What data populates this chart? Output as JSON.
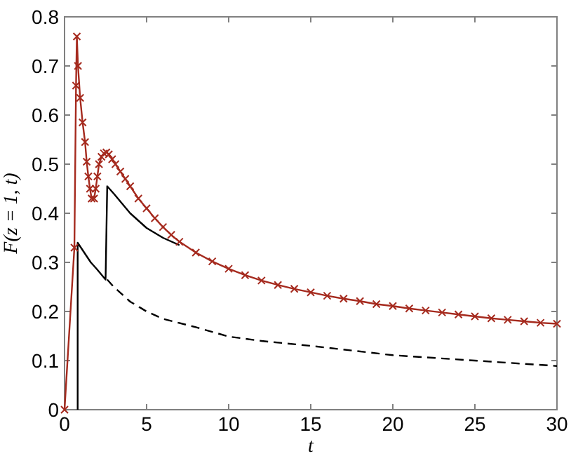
{
  "chart_data": {
    "type": "line",
    "xlabel": "t",
    "ylabel": "F(z = 1, t)",
    "xlim": [
      0,
      30
    ],
    "ylim": [
      0,
      0.8
    ],
    "xticks": [
      0,
      5,
      10,
      15,
      20,
      25,
      30
    ],
    "yticks": [
      0,
      0.1,
      0.2,
      0.3,
      0.4,
      0.5,
      0.6,
      0.7,
      0.8
    ],
    "grid": false,
    "series": [
      {
        "color": "#000000",
        "line_style": "solid",
        "marker": "none",
        "x": [
          0.8,
          0.8,
          1.2,
          1.6,
          2,
          2.5,
          2.6,
          3,
          3.5,
          4,
          4.5,
          5,
          6,
          7
        ],
        "values": [
          0,
          0.34,
          0.32,
          0.3,
          0.285,
          0.265,
          0.455,
          0.44,
          0.42,
          0.4,
          0.385,
          0.37,
          0.35,
          0.335
        ]
      },
      {
        "color": "#000000",
        "line_style": "dashed",
        "marker": "none",
        "x": [
          2.6,
          3,
          4,
          4.6,
          5,
          6,
          8,
          10,
          12,
          15,
          20,
          25,
          30
        ],
        "values": [
          0.265,
          0.25,
          0.22,
          0.208,
          0.2,
          0.185,
          0.168,
          0.149,
          0.14,
          0.13,
          0.111,
          0.1,
          0.089
        ]
      },
      {
        "color": "#a52a1e",
        "line_style": "solid",
        "marker": "cross",
        "x": [
          0,
          0.6,
          0.7,
          0.75,
          0.82,
          0.95,
          1.1,
          1.25,
          1.35,
          1.45,
          1.55,
          1.65,
          1.8,
          1.9,
          2,
          2.1,
          2.25,
          2.4,
          2.55,
          2.7,
          2.9,
          3.1,
          3.4,
          3.7,
          4,
          4.5,
          5,
          5.5,
          6,
          6.5,
          7,
          8,
          9,
          10,
          11,
          12,
          13,
          14,
          15,
          16,
          17,
          18,
          19,
          20,
          21,
          22,
          23,
          24,
          25,
          26,
          27,
          28,
          29,
          30
        ],
        "values": [
          0,
          0.33,
          0.66,
          0.76,
          0.7,
          0.635,
          0.585,
          0.545,
          0.505,
          0.475,
          0.45,
          0.43,
          0.43,
          0.45,
          0.475,
          0.5,
          0.515,
          0.522,
          0.524,
          0.52,
          0.51,
          0.5,
          0.485,
          0.47,
          0.455,
          0.43,
          0.41,
          0.39,
          0.372,
          0.356,
          0.342,
          0.32,
          0.302,
          0.287,
          0.274,
          0.263,
          0.254,
          0.246,
          0.239,
          0.232,
          0.226,
          0.221,
          0.215,
          0.211,
          0.206,
          0.202,
          0.198,
          0.194,
          0.19,
          0.186,
          0.183,
          0.18,
          0.177,
          0.175
        ]
      }
    ]
  }
}
